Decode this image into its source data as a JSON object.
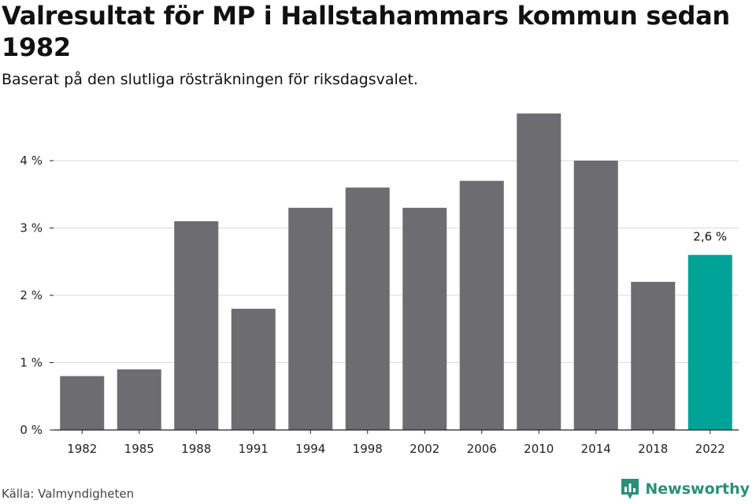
{
  "title": "Valresultat för MP i Hallstahammars kommun sedan 1982",
  "subtitle": "Baserat på den slutliga rösträkningen för riksdagsvalet.",
  "source": "Källa: Valmyndigheten",
  "brand": "Newsworthy",
  "colors": {
    "bar": "#6d6c71",
    "highlight": "#00a397",
    "grid": "#d9d9d9",
    "axis": "#222222",
    "brand": "#2a8f7a"
  },
  "chart_data": {
    "type": "bar",
    "title": "Valresultat för MP i Hallstahammars kommun sedan 1982",
    "xlabel": "",
    "ylabel": "",
    "categories": [
      "1982",
      "1985",
      "1988",
      "1991",
      "1994",
      "1998",
      "2002",
      "2006",
      "2010",
      "2014",
      "2018",
      "2022"
    ],
    "values": [
      0.8,
      0.9,
      3.1,
      1.8,
      3.3,
      3.6,
      3.3,
      3.7,
      4.7,
      4.0,
      2.2,
      2.6
    ],
    "ylim": [
      0,
      5
    ],
    "yticks": [
      0,
      1,
      2,
      3,
      4
    ],
    "ytick_labels": [
      "0 %",
      "1 %",
      "2 %",
      "3 %",
      "4 %"
    ],
    "highlight_index": 11,
    "highlight_label": "2,6 %",
    "grid": true
  }
}
